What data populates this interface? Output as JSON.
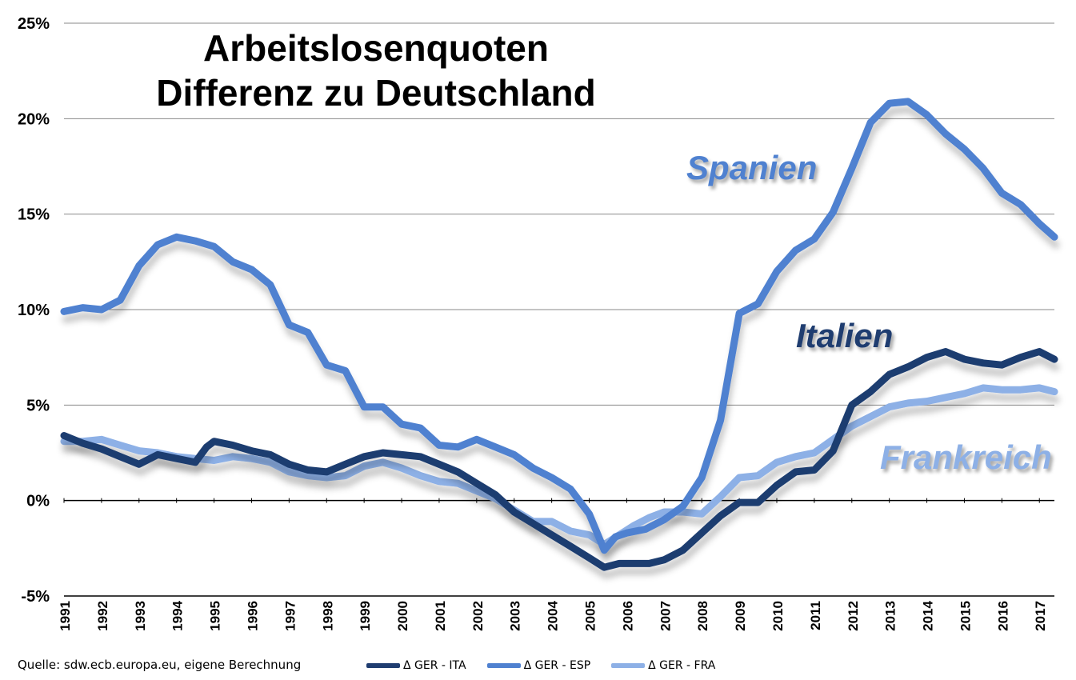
{
  "chart_data": {
    "type": "line",
    "title": "Arbeitslosenquoten",
    "subtitle": "Differenz zu Deutschland",
    "ylim": [
      -5,
      25
    ],
    "ytick_labels": [
      "25%",
      "20%",
      "15%",
      "10%",
      "5%",
      "0%",
      "-5%"
    ],
    "ytick_values": [
      25,
      20,
      15,
      10,
      5,
      0,
      -5
    ],
    "xlim": [
      1991,
      2017.4
    ],
    "xtick_labels": [
      "1991",
      "1992",
      "1993",
      "1994",
      "1995",
      "1996",
      "1997",
      "1998",
      "1999",
      "2000",
      "2001",
      "2002",
      "2003",
      "2004",
      "2005",
      "2006",
      "2007",
      "2008",
      "2009",
      "2010",
      "2011",
      "2012",
      "2013",
      "2014",
      "2015",
      "2016",
      "2017"
    ],
    "grid": true,
    "series": [
      {
        "name": "Δ GER - ITA",
        "label": "Italien",
        "color": "#1f3d70",
        "x": [
          1991,
          1991.5,
          1992,
          1992.5,
          1993,
          1993.5,
          1994,
          1994.5,
          1994.8,
          1995,
          1995.5,
          1996,
          1996.5,
          1997,
          1997.5,
          1998,
          1998.5,
          1999,
          1999.5,
          2000,
          2000.5,
          2001,
          2001.5,
          2002,
          2002.5,
          2003,
          2003.5,
          2004,
          2004.5,
          2005,
          2005.4,
          2005.8,
          2006.2,
          2006.6,
          2007,
          2007.5,
          2008,
          2008.5,
          2009,
          2009.5,
          2010,
          2010.5,
          2011,
          2011.5,
          2012,
          2012.5,
          2013,
          2013.5,
          2014,
          2014.5,
          2015,
          2015.5,
          2016,
          2016.5,
          2017,
          2017.4
        ],
        "values": [
          3.4,
          3.0,
          2.7,
          2.3,
          1.9,
          2.4,
          2.2,
          2.0,
          2.8,
          3.1,
          2.9,
          2.6,
          2.4,
          1.9,
          1.6,
          1.5,
          1.9,
          2.3,
          2.5,
          2.4,
          2.3,
          1.9,
          1.5,
          0.9,
          0.3,
          -0.6,
          -1.2,
          -1.8,
          -2.4,
          -3.0,
          -3.5,
          -3.3,
          -3.3,
          -3.3,
          -3.1,
          -2.6,
          -1.7,
          -0.8,
          -0.1,
          -0.1,
          0.8,
          1.5,
          1.6,
          2.6,
          5.0,
          5.7,
          6.6,
          7.0,
          7.5,
          7.8,
          7.4,
          7.2,
          7.1,
          7.5,
          7.8,
          7.4
        ]
      },
      {
        "name": "Δ GER - ESP",
        "label": "Spanien",
        "color": "#4f81d0",
        "x": [
          1991,
          1991.5,
          1992,
          1992.5,
          1993,
          1993.5,
          1994,
          1994.5,
          1995,
          1995.5,
          1996,
          1996.5,
          1997,
          1997.5,
          1998,
          1998.5,
          1999,
          1999.5,
          2000,
          2000.5,
          2001,
          2001.5,
          2002,
          2002.5,
          2003,
          2003.5,
          2004,
          2004.5,
          2005,
          2005.4,
          2005.7,
          2006,
          2006.5,
          2007,
          2007.5,
          2008,
          2008.5,
          2009,
          2009.5,
          2010,
          2010.5,
          2011,
          2011.5,
          2012,
          2012.5,
          2013,
          2013.5,
          2014,
          2014.5,
          2015,
          2015.5,
          2016,
          2016.5,
          2017,
          2017.4
        ],
        "values": [
          9.9,
          10.1,
          10.0,
          10.5,
          12.3,
          13.4,
          13.8,
          13.6,
          13.3,
          12.5,
          12.1,
          11.3,
          9.2,
          8.8,
          7.1,
          6.8,
          4.9,
          4.9,
          4.0,
          3.8,
          2.9,
          2.8,
          3.2,
          2.8,
          2.4,
          1.7,
          1.2,
          0.6,
          -0.7,
          -2.6,
          -1.9,
          -1.7,
          -1.5,
          -1.0,
          -0.3,
          1.2,
          4.2,
          9.8,
          10.3,
          12.0,
          13.1,
          13.7,
          15.1,
          17.4,
          19.8,
          20.8,
          20.9,
          20.2,
          19.2,
          18.4,
          17.4,
          16.1,
          15.5,
          14.5,
          13.8
        ]
      },
      {
        "name": "Δ GER - FRA",
        "label": "Frankreich",
        "color": "#8db0e6",
        "x": [
          1991,
          1991.5,
          1992,
          1992.5,
          1993,
          1993.5,
          1994,
          1994.5,
          1995,
          1995.5,
          1996,
          1996.5,
          1997,
          1997.5,
          1998,
          1998.5,
          1999,
          1999.5,
          2000,
          2000.5,
          2001,
          2001.5,
          2002,
          2002.5,
          2003,
          2003.5,
          2004,
          2004.5,
          2005,
          2005.4,
          2005.8,
          2006.2,
          2006.6,
          2007,
          2007.5,
          2008,
          2008.5,
          2009,
          2009.5,
          2010,
          2010.5,
          2011,
          2011.5,
          2012,
          2012.5,
          2013,
          2013.5,
          2014,
          2014.5,
          2015,
          2015.5,
          2016,
          2016.5,
          2017,
          2017.4
        ],
        "values": [
          3.1,
          3.1,
          3.2,
          2.9,
          2.6,
          2.5,
          2.3,
          2.2,
          2.1,
          2.3,
          2.2,
          2.0,
          1.5,
          1.3,
          1.2,
          1.3,
          1.8,
          2.0,
          1.7,
          1.3,
          1.0,
          0.9,
          0.5,
          0.1,
          -0.5,
          -1.1,
          -1.1,
          -1.6,
          -1.8,
          -2.3,
          -1.8,
          -1.3,
          -0.9,
          -0.6,
          -0.6,
          -0.7,
          0.2,
          1.2,
          1.3,
          2.0,
          2.3,
          2.5,
          3.2,
          3.9,
          4.4,
          4.9,
          5.1,
          5.2,
          5.4,
          5.6,
          5.9,
          5.8,
          5.8,
          5.9,
          5.7
        ]
      }
    ],
    "series_labels": [
      "Spanien",
      "Italien",
      "Frankreich"
    ],
    "source": "Quelle: sdw.ecb.europa.eu, eigene Berechnung",
    "legend": [
      "Δ GER - ITA",
      "Δ GER - ESP",
      "Δ GER - FRA"
    ],
    "legend_position": "bottom"
  }
}
